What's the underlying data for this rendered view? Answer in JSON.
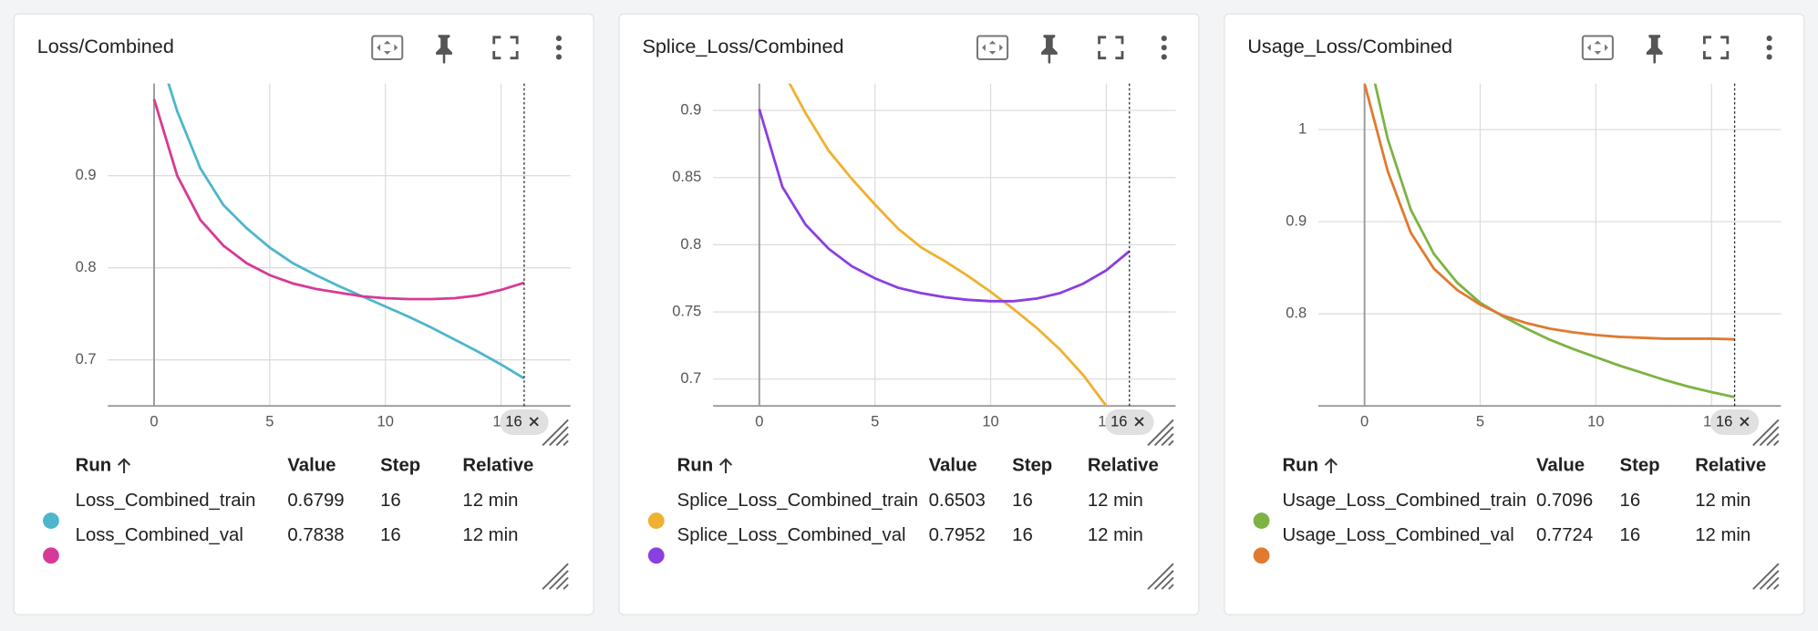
{
  "chart_data": [
    {
      "type": "line",
      "title": "Loss/Combined",
      "x": [
        0,
        1,
        2,
        3,
        4,
        5,
        6,
        7,
        8,
        9,
        10,
        11,
        12,
        13,
        14,
        15,
        16
      ],
      "series": [
        {
          "name": "Loss_Combined_train",
          "color": "#4db6cc",
          "values": [
            1.05,
            0.97,
            0.908,
            0.868,
            0.843,
            0.822,
            0.805,
            0.792,
            0.78,
            0.769,
            0.758,
            0.747,
            0.735,
            0.722,
            0.709,
            0.695,
            0.6799
          ]
        },
        {
          "name": "Loss_Combined_val",
          "color": "#d63a96",
          "values": [
            0.983,
            0.9,
            0.852,
            0.824,
            0.805,
            0.792,
            0.783,
            0.777,
            0.773,
            0.769,
            0.767,
            0.766,
            0.766,
            0.767,
            0.77,
            0.776,
            0.7838
          ]
        }
      ],
      "xlim": [
        -2,
        18
      ],
      "xticks": [
        0,
        5,
        10,
        15
      ],
      "ylim": [
        0.65,
        1.0
      ],
      "yticks": [
        0.7,
        0.8,
        0.9
      ],
      "grid": true,
      "cursor": 16
    },
    {
      "type": "line",
      "title": "Splice_Loss/Combined",
      "x": [
        0,
        1,
        2,
        3,
        4,
        5,
        6,
        7,
        8,
        9,
        10,
        11,
        12,
        13,
        14,
        15,
        16
      ],
      "series": [
        {
          "name": "Splice_Loss_Combined_train",
          "color": "#f0b030",
          "values": [
            0.96,
            0.93,
            0.898,
            0.87,
            0.849,
            0.83,
            0.812,
            0.798,
            0.788,
            0.777,
            0.765,
            0.752,
            0.738,
            0.722,
            0.703,
            0.68,
            0.6503
          ]
        },
        {
          "name": "Splice_Loss_Combined_val",
          "color": "#8a3fe0",
          "values": [
            0.901,
            0.843,
            0.815,
            0.797,
            0.784,
            0.775,
            0.768,
            0.764,
            0.761,
            0.759,
            0.758,
            0.758,
            0.76,
            0.764,
            0.771,
            0.781,
            0.7952
          ]
        }
      ],
      "xlim": [
        -2,
        18
      ],
      "xticks": [
        0,
        5,
        10,
        15
      ],
      "ylim": [
        0.68,
        0.92
      ],
      "yticks": [
        0.7,
        0.75,
        0.8,
        0.85,
        0.9
      ],
      "grid": true,
      "cursor": 16
    },
    {
      "type": "line",
      "title": "Usage_Loss/Combined",
      "x": [
        0,
        1,
        2,
        3,
        4,
        5,
        6,
        7,
        8,
        9,
        10,
        11,
        12,
        13,
        14,
        15,
        16
      ],
      "series": [
        {
          "name": "Usage_Loss_Combined_train",
          "color": "#7cb342",
          "values": [
            1.1,
            0.99,
            0.913,
            0.865,
            0.834,
            0.812,
            0.797,
            0.784,
            0.772,
            0.762,
            0.753,
            0.744,
            0.736,
            0.728,
            0.721,
            0.715,
            0.7096
          ]
        },
        {
          "name": "Usage_Loss_Combined_val",
          "color": "#e07a2e",
          "values": [
            1.05,
            0.955,
            0.888,
            0.849,
            0.826,
            0.81,
            0.798,
            0.79,
            0.784,
            0.78,
            0.777,
            0.775,
            0.774,
            0.773,
            0.773,
            0.773,
            0.7724
          ]
        }
      ],
      "xlim": [
        -2,
        18
      ],
      "xticks": [
        0,
        5,
        10,
        15
      ],
      "ylim": [
        0.7,
        1.05
      ],
      "yticks": [
        0.8,
        0.9,
        1
      ],
      "grid": true,
      "cursor": 16
    }
  ],
  "tables": [
    {
      "headers": [
        "Run",
        "Value",
        "Step",
        "Relative"
      ],
      "rows": [
        [
          0.6799,
          16,
          "12 min"
        ],
        [
          0.7838,
          16,
          "12 min"
        ]
      ]
    },
    {
      "headers": [
        "Run",
        "Value",
        "Step",
        "Relative"
      ],
      "rows": [
        [
          0.6503,
          16,
          "12 min"
        ],
        [
          0.7952,
          16,
          "12 min"
        ]
      ]
    },
    {
      "headers": [
        "Run",
        "Value",
        "Step",
        "Relative"
      ],
      "rows": [
        [
          0.7096,
          16,
          "12 min"
        ],
        [
          0.7724,
          16,
          "12 min"
        ]
      ]
    }
  ]
}
